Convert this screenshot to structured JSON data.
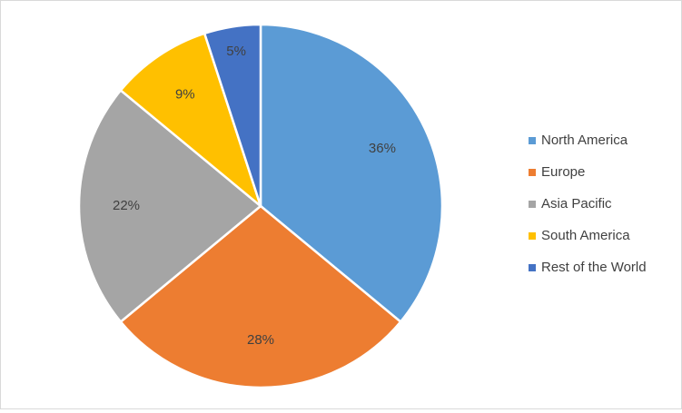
{
  "chart_data": {
    "type": "pie",
    "title": "",
    "categories": [
      "North America",
      "Europe",
      "Asia Pacific",
      "South America",
      "Rest of the World"
    ],
    "values": [
      36,
      28,
      22,
      9,
      5
    ],
    "labels": [
      "36%",
      "28%",
      "22%",
      "9%",
      "5%"
    ],
    "colors": [
      "#5B9BD5",
      "#ED7D31",
      "#A5A5A5",
      "#FFC000",
      "#4472C4"
    ],
    "legend": {
      "position": "right"
    },
    "start_angle": "12 o'clock",
    "direction": "clockwise",
    "slice_border_color": "#ffffff"
  }
}
